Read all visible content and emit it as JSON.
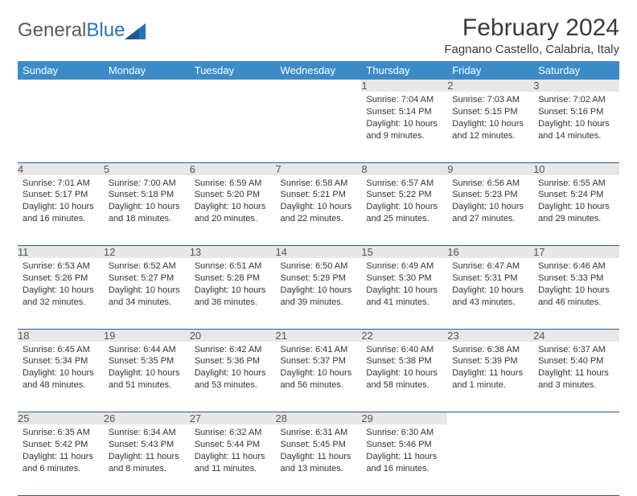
{
  "logo": {
    "part1": "General",
    "part2": "Blue"
  },
  "title": "February 2024",
  "location": "Fagnano Castello, Calabria, Italy",
  "colors": {
    "header_bg": "#3b8bc9",
    "header_text": "#ffffff",
    "daynum_bg": "#e8e8e8",
    "rule": "#2a5a8a",
    "logo_gray": "#5a5a5a",
    "logo_blue": "#2a71b8"
  },
  "weekdays": [
    "Sunday",
    "Monday",
    "Tuesday",
    "Wednesday",
    "Thursday",
    "Friday",
    "Saturday"
  ],
  "weeks": [
    [
      null,
      null,
      null,
      null,
      {
        "n": "1",
        "sr": "7:04 AM",
        "ss": "5:14 PM",
        "dl": "10 hours and 9 minutes."
      },
      {
        "n": "2",
        "sr": "7:03 AM",
        "ss": "5:15 PM",
        "dl": "10 hours and 12 minutes."
      },
      {
        "n": "3",
        "sr": "7:02 AM",
        "ss": "5:16 PM",
        "dl": "10 hours and 14 minutes."
      }
    ],
    [
      {
        "n": "4",
        "sr": "7:01 AM",
        "ss": "5:17 PM",
        "dl": "10 hours and 16 minutes."
      },
      {
        "n": "5",
        "sr": "7:00 AM",
        "ss": "5:18 PM",
        "dl": "10 hours and 18 minutes."
      },
      {
        "n": "6",
        "sr": "6:59 AM",
        "ss": "5:20 PM",
        "dl": "10 hours and 20 minutes."
      },
      {
        "n": "7",
        "sr": "6:58 AM",
        "ss": "5:21 PM",
        "dl": "10 hours and 22 minutes."
      },
      {
        "n": "8",
        "sr": "6:57 AM",
        "ss": "5:22 PM",
        "dl": "10 hours and 25 minutes."
      },
      {
        "n": "9",
        "sr": "6:56 AM",
        "ss": "5:23 PM",
        "dl": "10 hours and 27 minutes."
      },
      {
        "n": "10",
        "sr": "6:55 AM",
        "ss": "5:24 PM",
        "dl": "10 hours and 29 minutes."
      }
    ],
    [
      {
        "n": "11",
        "sr": "6:53 AM",
        "ss": "5:26 PM",
        "dl": "10 hours and 32 minutes."
      },
      {
        "n": "12",
        "sr": "6:52 AM",
        "ss": "5:27 PM",
        "dl": "10 hours and 34 minutes."
      },
      {
        "n": "13",
        "sr": "6:51 AM",
        "ss": "5:28 PM",
        "dl": "10 hours and 36 minutes."
      },
      {
        "n": "14",
        "sr": "6:50 AM",
        "ss": "5:29 PM",
        "dl": "10 hours and 39 minutes."
      },
      {
        "n": "15",
        "sr": "6:49 AM",
        "ss": "5:30 PM",
        "dl": "10 hours and 41 minutes."
      },
      {
        "n": "16",
        "sr": "6:47 AM",
        "ss": "5:31 PM",
        "dl": "10 hours and 43 minutes."
      },
      {
        "n": "17",
        "sr": "6:46 AM",
        "ss": "5:33 PM",
        "dl": "10 hours and 46 minutes."
      }
    ],
    [
      {
        "n": "18",
        "sr": "6:45 AM",
        "ss": "5:34 PM",
        "dl": "10 hours and 48 minutes."
      },
      {
        "n": "19",
        "sr": "6:44 AM",
        "ss": "5:35 PM",
        "dl": "10 hours and 51 minutes."
      },
      {
        "n": "20",
        "sr": "6:42 AM",
        "ss": "5:36 PM",
        "dl": "10 hours and 53 minutes."
      },
      {
        "n": "21",
        "sr": "6:41 AM",
        "ss": "5:37 PM",
        "dl": "10 hours and 56 minutes."
      },
      {
        "n": "22",
        "sr": "6:40 AM",
        "ss": "5:38 PM",
        "dl": "10 hours and 58 minutes."
      },
      {
        "n": "23",
        "sr": "6:38 AM",
        "ss": "5:39 PM",
        "dl": "11 hours and 1 minute."
      },
      {
        "n": "24",
        "sr": "6:37 AM",
        "ss": "5:40 PM",
        "dl": "11 hours and 3 minutes."
      }
    ],
    [
      {
        "n": "25",
        "sr": "6:35 AM",
        "ss": "5:42 PM",
        "dl": "11 hours and 6 minutes."
      },
      {
        "n": "26",
        "sr": "6:34 AM",
        "ss": "5:43 PM",
        "dl": "11 hours and 8 minutes."
      },
      {
        "n": "27",
        "sr": "6:32 AM",
        "ss": "5:44 PM",
        "dl": "11 hours and 11 minutes."
      },
      {
        "n": "28",
        "sr": "6:31 AM",
        "ss": "5:45 PM",
        "dl": "11 hours and 13 minutes."
      },
      {
        "n": "29",
        "sr": "6:30 AM",
        "ss": "5:46 PM",
        "dl": "11 hours and 16 minutes."
      },
      null,
      null
    ]
  ],
  "labels": {
    "sunrise": "Sunrise: ",
    "sunset": "Sunset: ",
    "daylight": "Daylight: "
  }
}
